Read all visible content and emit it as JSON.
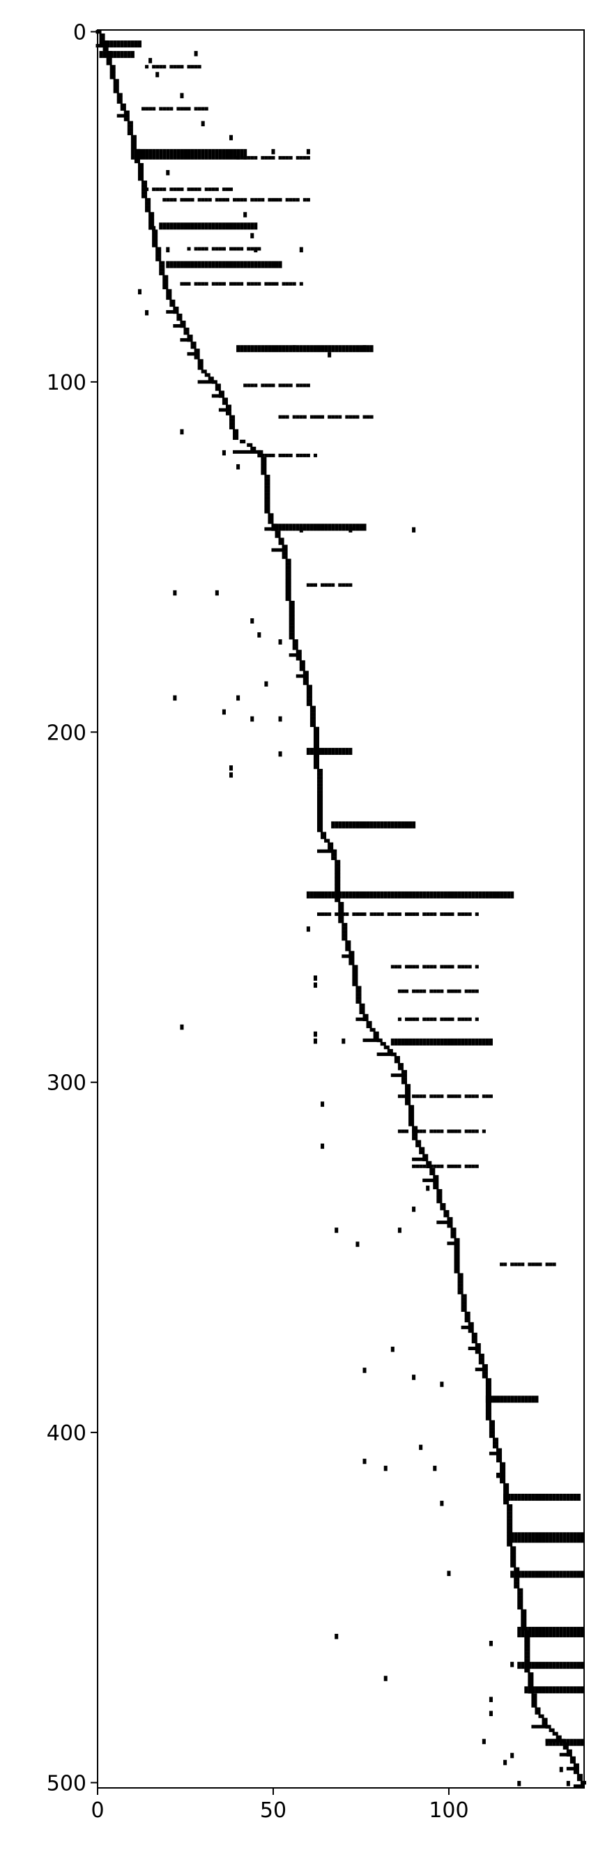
{
  "chart_data": {
    "type": "heatmap",
    "description_note": "",
    "xlim": [
      0,
      138.5
    ],
    "ylim": [
      501.5,
      -0.5
    ],
    "y_inverted": true,
    "grid": false,
    "legend": "none",
    "colors": {
      "cell": "#000000",
      "background": "#ffffff",
      "axis": "#000000"
    },
    "x_ticks": [
      0,
      50,
      100
    ],
    "y_ticks": [
      0,
      100,
      200,
      300,
      400,
      500
    ],
    "diagonal_path": [
      [
        0,
        0
      ],
      [
        2,
        4
      ],
      [
        3,
        8
      ],
      [
        4,
        12
      ],
      [
        5,
        16
      ],
      [
        6,
        20
      ],
      [
        8,
        24
      ],
      [
        9,
        28
      ],
      [
        10,
        32
      ],
      [
        11,
        36
      ],
      [
        12,
        40
      ],
      [
        13,
        46
      ],
      [
        14,
        50
      ],
      [
        15,
        54
      ],
      [
        16,
        60
      ],
      [
        17,
        64
      ],
      [
        18,
        68
      ],
      [
        19,
        72
      ],
      [
        20,
        76
      ],
      [
        22,
        80
      ],
      [
        24,
        84
      ],
      [
        26,
        88
      ],
      [
        28,
        92
      ],
      [
        29,
        96
      ],
      [
        33,
        100
      ],
      [
        35,
        104
      ],
      [
        37,
        108
      ],
      [
        38,
        112
      ],
      [
        39,
        116
      ],
      [
        46,
        120
      ],
      [
        47,
        124
      ],
      [
        48,
        130
      ],
      [
        48,
        136
      ],
      [
        50,
        142
      ],
      [
        53,
        148
      ],
      [
        54,
        154
      ],
      [
        54,
        160
      ],
      [
        55,
        166
      ],
      [
        55,
        172
      ],
      [
        57,
        178
      ],
      [
        59,
        184
      ],
      [
        60,
        190
      ],
      [
        61,
        196
      ],
      [
        62,
        202
      ],
      [
        62,
        208
      ],
      [
        63,
        214
      ],
      [
        63,
        220
      ],
      [
        63,
        228
      ],
      [
        67,
        234
      ],
      [
        68,
        240
      ],
      [
        68,
        246
      ],
      [
        69,
        252
      ],
      [
        70,
        258
      ],
      [
        72,
        264
      ],
      [
        73,
        270
      ],
      [
        74,
        276
      ],
      [
        76,
        282
      ],
      [
        80,
        288
      ],
      [
        84,
        292
      ],
      [
        87,
        298
      ],
      [
        88,
        304
      ],
      [
        89,
        310
      ],
      [
        90,
        316
      ],
      [
        93,
        322
      ],
      [
        96,
        328
      ],
      [
        97,
        334
      ],
      [
        100,
        340
      ],
      [
        102,
        346
      ],
      [
        102,
        352
      ],
      [
        103,
        358
      ],
      [
        104,
        364
      ],
      [
        106,
        370
      ],
      [
        108,
        376
      ],
      [
        110,
        382
      ],
      [
        111,
        388
      ],
      [
        111,
        394
      ],
      [
        112,
        400
      ],
      [
        114,
        406
      ],
      [
        115,
        412
      ],
      [
        116,
        418
      ],
      [
        117,
        424
      ],
      [
        117,
        430
      ],
      [
        118,
        436
      ],
      [
        119,
        442
      ],
      [
        120,
        448
      ],
      [
        121,
        454
      ],
      [
        122,
        460
      ],
      [
        122,
        466
      ],
      [
        123,
        472
      ],
      [
        124,
        478
      ],
      [
        128,
        484
      ],
      [
        132,
        488
      ],
      [
        134,
        492
      ],
      [
        136,
        496
      ],
      [
        138,
        501
      ]
    ],
    "horizontal_bands": [
      {
        "y": 3,
        "x0": 1,
        "x1": 12,
        "t": 2
      },
      {
        "y": 6,
        "x0": 1,
        "x1": 10,
        "t": 2
      },
      {
        "y": 10,
        "x0": 14,
        "x1": 30,
        "t": 1
      },
      {
        "y": 22,
        "x0": 12,
        "x1": 32,
        "t": 1
      },
      {
        "y": 34,
        "x0": 10,
        "x1": 42,
        "t": 3
      },
      {
        "y": 36,
        "x0": 40,
        "x1": 60,
        "t": 1
      },
      {
        "y": 45,
        "x0": 14,
        "x1": 38,
        "t": 1
      },
      {
        "y": 48,
        "x0": 18,
        "x1": 60,
        "t": 1
      },
      {
        "y": 55,
        "x0": 18,
        "x1": 45,
        "t": 2
      },
      {
        "y": 62,
        "x0": 26,
        "x1": 46,
        "t": 1
      },
      {
        "y": 66,
        "x0": 20,
        "x1": 52,
        "t": 2
      },
      {
        "y": 72,
        "x0": 24,
        "x1": 58,
        "t": 1
      },
      {
        "y": 90,
        "x0": 40,
        "x1": 78,
        "t": 2
      },
      {
        "y": 101,
        "x0": 42,
        "x1": 60,
        "t": 1
      },
      {
        "y": 110,
        "x0": 52,
        "x1": 78,
        "t": 1
      },
      {
        "y": 121,
        "x0": 46,
        "x1": 62,
        "t": 1
      },
      {
        "y": 141,
        "x0": 50,
        "x1": 76,
        "t": 2
      },
      {
        "y": 158,
        "x0": 60,
        "x1": 73,
        "t": 1
      },
      {
        "y": 205,
        "x0": 60,
        "x1": 72,
        "t": 2
      },
      {
        "y": 226,
        "x0": 67,
        "x1": 90,
        "t": 2
      },
      {
        "y": 246,
        "x0": 60,
        "x1": 118,
        "t": 2
      },
      {
        "y": 252,
        "x0": 62,
        "x1": 108,
        "t": 1
      },
      {
        "y": 267,
        "x0": 84,
        "x1": 108,
        "t": 1
      },
      {
        "y": 274,
        "x0": 86,
        "x1": 108,
        "t": 1
      },
      {
        "y": 282,
        "x0": 86,
        "x1": 108,
        "t": 1
      },
      {
        "y": 288,
        "x0": 84,
        "x1": 112,
        "t": 2
      },
      {
        "y": 304,
        "x0": 86,
        "x1": 112,
        "t": 1
      },
      {
        "y": 314,
        "x0": 86,
        "x1": 110,
        "t": 1
      },
      {
        "y": 324,
        "x0": 90,
        "x1": 108,
        "t": 1
      },
      {
        "y": 352,
        "x0": 115,
        "x1": 130,
        "t": 1
      },
      {
        "y": 390,
        "x0": 111,
        "x1": 125,
        "t": 2
      },
      {
        "y": 418,
        "x0": 116,
        "x1": 137,
        "t": 2
      },
      {
        "y": 429,
        "x0": 118,
        "x1": 138,
        "t": 3
      },
      {
        "y": 440,
        "x0": 118,
        "x1": 138,
        "t": 2
      },
      {
        "y": 456,
        "x0": 120,
        "x1": 138,
        "t": 3
      },
      {
        "y": 466,
        "x0": 120,
        "x1": 138,
        "t": 2
      },
      {
        "y": 473,
        "x0": 122,
        "x1": 138,
        "t": 2
      },
      {
        "y": 488,
        "x0": 128,
        "x1": 138,
        "t": 2
      }
    ],
    "scatter_cells": [
      [
        28,
        6
      ],
      [
        15,
        8
      ],
      [
        17,
        12
      ],
      [
        24,
        18
      ],
      [
        30,
        26
      ],
      [
        38,
        30
      ],
      [
        20,
        40
      ],
      [
        50,
        34
      ],
      [
        60,
        34
      ],
      [
        16,
        56
      ],
      [
        20,
        62
      ],
      [
        42,
        52
      ],
      [
        44,
        58
      ],
      [
        45,
        62
      ],
      [
        58,
        62
      ],
      [
        12,
        74
      ],
      [
        14,
        80
      ],
      [
        56,
        90
      ],
      [
        66,
        92
      ],
      [
        76,
        90
      ],
      [
        24,
        114
      ],
      [
        36,
        120
      ],
      [
        40,
        124
      ],
      [
        58,
        142
      ],
      [
        72,
        142
      ],
      [
        90,
        142
      ],
      [
        22,
        160
      ],
      [
        34,
        160
      ],
      [
        44,
        168
      ],
      [
        46,
        172
      ],
      [
        52,
        174
      ],
      [
        22,
        190
      ],
      [
        36,
        194
      ],
      [
        40,
        190
      ],
      [
        44,
        196
      ],
      [
        48,
        186
      ],
      [
        52,
        196
      ],
      [
        52,
        206
      ],
      [
        38,
        210
      ],
      [
        38,
        212
      ],
      [
        60,
        256
      ],
      [
        62,
        270
      ],
      [
        62,
        272
      ],
      [
        62,
        286
      ],
      [
        62,
        288
      ],
      [
        70,
        288
      ],
      [
        24,
        284
      ],
      [
        64,
        306
      ],
      [
        64,
        318
      ],
      [
        90,
        336
      ],
      [
        94,
        330
      ],
      [
        86,
        342
      ],
      [
        68,
        342
      ],
      [
        74,
        346
      ],
      [
        76,
        382
      ],
      [
        84,
        376
      ],
      [
        90,
        384
      ],
      [
        98,
        386
      ],
      [
        92,
        404
      ],
      [
        82,
        410
      ],
      [
        76,
        408
      ],
      [
        96,
        410
      ],
      [
        98,
        420
      ],
      [
        114,
        412
      ],
      [
        100,
        440
      ],
      [
        112,
        460
      ],
      [
        118,
        466
      ],
      [
        68,
        458
      ],
      [
        82,
        470
      ],
      [
        112,
        476
      ],
      [
        112,
        480
      ],
      [
        110,
        488
      ],
      [
        118,
        492
      ],
      [
        116,
        494
      ],
      [
        120,
        500
      ],
      [
        132,
        496
      ],
      [
        134,
        500
      ]
    ]
  }
}
